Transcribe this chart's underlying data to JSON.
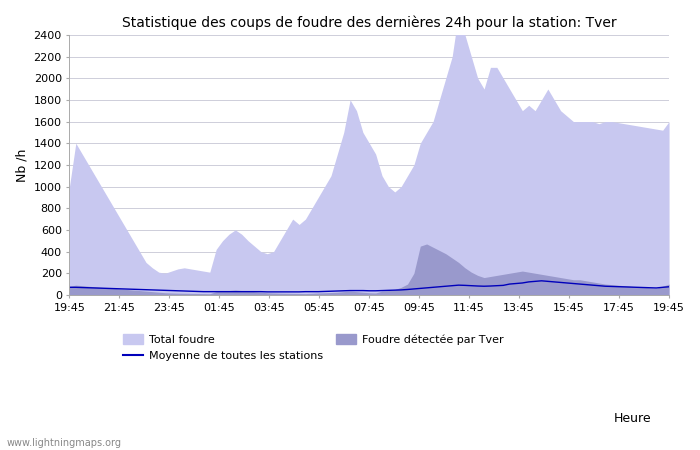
{
  "title": "Statistique des coups de foudre des dernières 24h pour la station: Tver",
  "xlabel": "Heure",
  "ylabel": "Nb /h",
  "ylim": [
    0,
    2400
  ],
  "yticks": [
    0,
    200,
    400,
    600,
    800,
    1000,
    1200,
    1400,
    1600,
    1800,
    2000,
    2200,
    2400
  ],
  "xtick_labels": [
    "19:45",
    "21:45",
    "23:45",
    "01:45",
    "03:45",
    "05:45",
    "07:45",
    "09:45",
    "11:45",
    "13:45",
    "15:45",
    "17:45",
    "19:45"
  ],
  "watermark": "www.lightningmaps.org",
  "color_total": "#c8c8f0",
  "color_local": "#9999cc",
  "color_mean": "#0000bb",
  "total_foudre": [
    1000,
    1400,
    1300,
    1200,
    1100,
    1000,
    900,
    800,
    700,
    600,
    500,
    400,
    300,
    250,
    210,
    200,
    220,
    240,
    250,
    240,
    230,
    220,
    210,
    420,
    500,
    560,
    600,
    560,
    500,
    450,
    400,
    380,
    400,
    500,
    600,
    700,
    650,
    700,
    800,
    900,
    1000,
    1100,
    1300,
    1500,
    1800,
    1700,
    1500,
    1400,
    1300,
    1100,
    1000,
    950,
    1000,
    1100,
    1200,
    1400,
    1500,
    1600,
    1800,
    2000,
    2200,
    2600,
    2400,
    2200,
    2000,
    1900,
    2100,
    2100,
    2000,
    1900,
    1800,
    1700,
    1750,
    1700,
    1800,
    1900,
    1800,
    1700,
    1650,
    1600,
    1600,
    1600,
    1600,
    1580,
    1600,
    1600,
    1590,
    1580,
    1570,
    1560,
    1550,
    1540,
    1530,
    1520,
    1600
  ],
  "foudre_locale": [
    80,
    90,
    85,
    80,
    75,
    70,
    65,
    60,
    55,
    50,
    45,
    40,
    35,
    30,
    25,
    20,
    18,
    16,
    15,
    14,
    13,
    12,
    11,
    30,
    35,
    40,
    45,
    40,
    35,
    30,
    25,
    20,
    18,
    16,
    15,
    14,
    13,
    12,
    15,
    18,
    20,
    22,
    25,
    30,
    35,
    30,
    25,
    20,
    18,
    35,
    40,
    50,
    70,
    100,
    200,
    450,
    470,
    440,
    410,
    380,
    340,
    300,
    250,
    210,
    180,
    160,
    170,
    180,
    190,
    200,
    210,
    220,
    210,
    200,
    190,
    180,
    170,
    160,
    150,
    140,
    140,
    130,
    120,
    110,
    100,
    95,
    90,
    85,
    80,
    75,
    70,
    65,
    60,
    80,
    100
  ],
  "moyenne": [
    70,
    70,
    68,
    66,
    64,
    62,
    60,
    58,
    56,
    54,
    52,
    50,
    48,
    46,
    44,
    42,
    40,
    38,
    36,
    34,
    32,
    30,
    30,
    30,
    30,
    30,
    30,
    30,
    30,
    30,
    30,
    28,
    28,
    28,
    28,
    28,
    28,
    30,
    30,
    30,
    32,
    34,
    36,
    38,
    40,
    40,
    40,
    38,
    38,
    40,
    42,
    44,
    46,
    50,
    55,
    60,
    65,
    70,
    75,
    80,
    85,
    90,
    88,
    85,
    82,
    80,
    82,
    85,
    88,
    100,
    105,
    110,
    120,
    125,
    130,
    125,
    120,
    115,
    110,
    105,
    100,
    95,
    90,
    85,
    80,
    78,
    76,
    74,
    72,
    70,
    68,
    66,
    64,
    70,
    75
  ]
}
